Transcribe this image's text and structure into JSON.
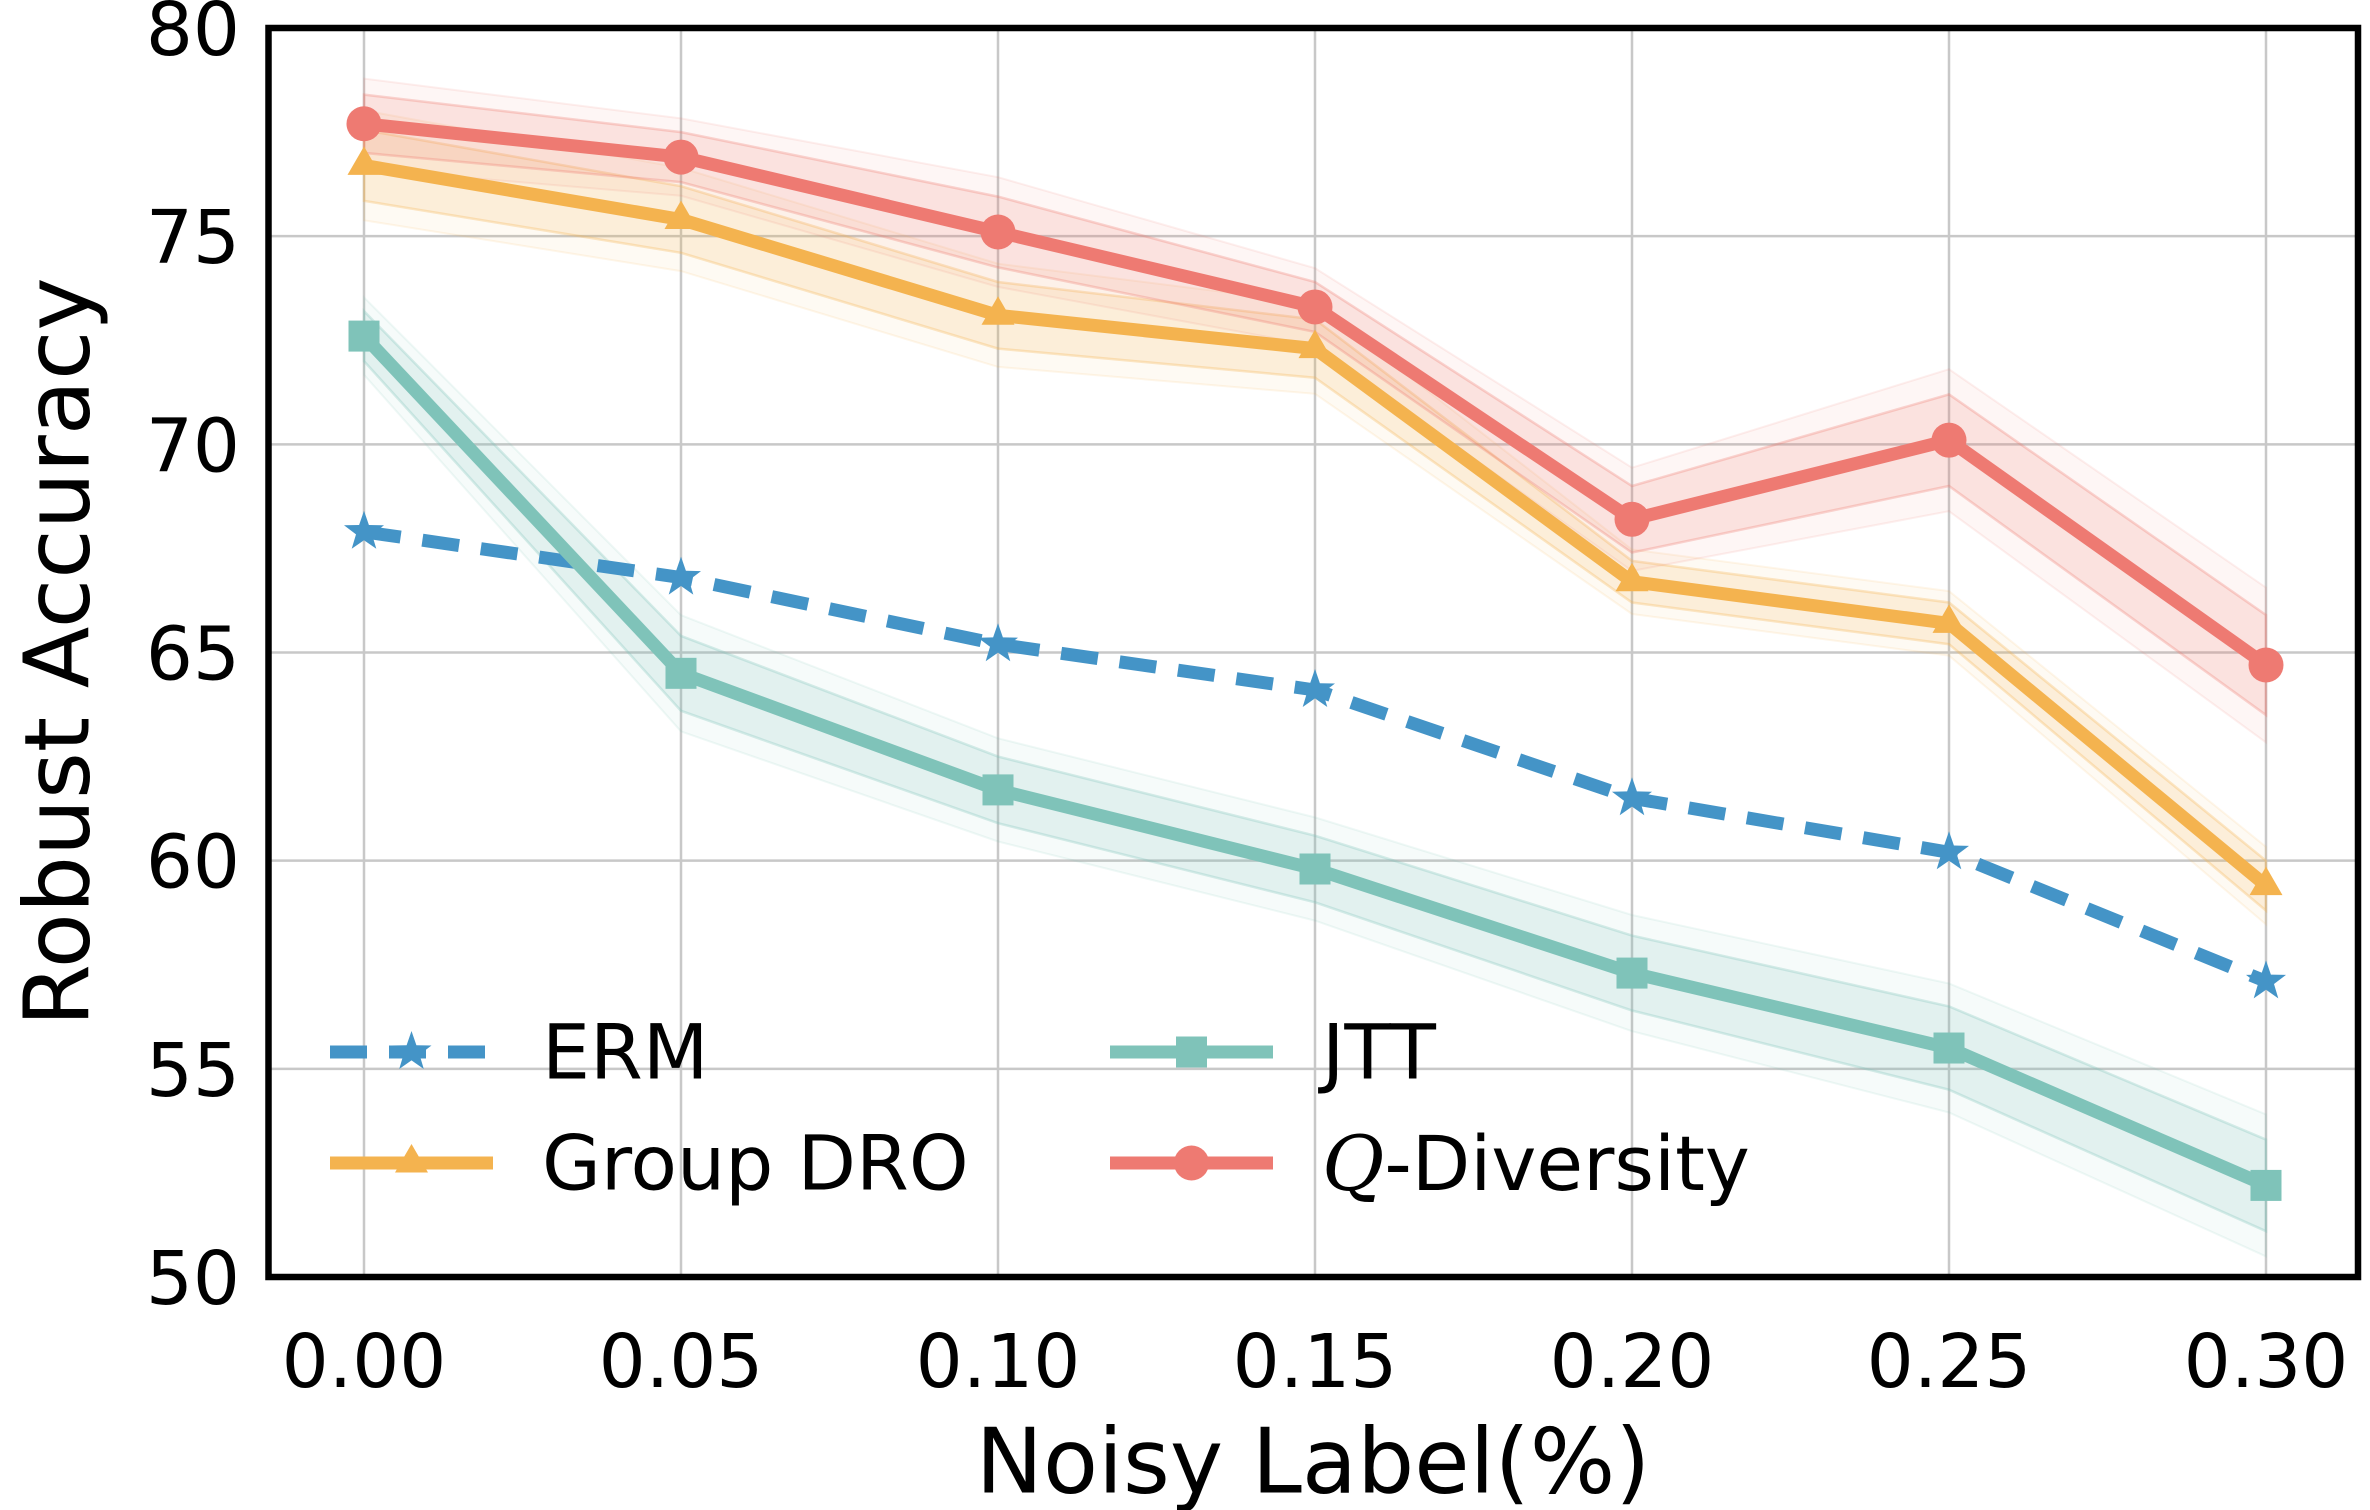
{
  "chart_data": {
    "type": "line",
    "title": "",
    "xlabel": "Noisy Label(%)",
    "ylabel": "Robust Accuracy",
    "x": [
      0.0,
      0.05,
      0.1,
      0.15,
      0.2,
      0.25,
      0.3
    ],
    "x_tick_labels": [
      "0.00",
      "0.05",
      "0.10",
      "0.15",
      "0.20",
      "0.25",
      "0.30"
    ],
    "y_ticks": [
      50,
      55,
      60,
      65,
      70,
      75,
      80
    ],
    "y_tick_labels": [
      "50",
      "55",
      "60",
      "65",
      "70",
      "75",
      "80"
    ],
    "xlim": [
      -0.015,
      0.3145
    ],
    "ylim": [
      50,
      80
    ],
    "grid": true,
    "grid_color": "#c8c8c8",
    "background_color": "#ffffff",
    "legend": {
      "position": "lower left",
      "columns": 2,
      "frame": false,
      "row1": [
        "ERM",
        "JTT"
      ],
      "row2": [
        "Group DRO",
        "Q-Diversity"
      ]
    },
    "series": [
      {
        "name": "ERM",
        "label": "ERM",
        "color": "#4494c7",
        "marker": "star",
        "line_style": "dashed",
        "values": [
          67.9,
          66.8,
          65.2,
          64.1,
          61.5,
          60.2,
          57.1
        ],
        "band_halfwidth": null
      },
      {
        "name": "Group DRO",
        "label": "Group DRO",
        "color": "#f4b34f",
        "marker": "triangle",
        "line_style": "solid",
        "values": [
          76.7,
          75.4,
          73.1,
          72.3,
          66.7,
          65.7,
          59.4
        ],
        "band_halfwidth": [
          0.85,
          0.8,
          0.8,
          0.7,
          0.5,
          0.5,
          0.6
        ]
      },
      {
        "name": "JTT",
        "label": "JTT",
        "color": "#7fc3b9",
        "marker": "square",
        "line_style": "solid",
        "values": [
          72.6,
          64.5,
          61.7,
          59.8,
          57.3,
          55.5,
          52.2
        ],
        "band_halfwidth": [
          0.6,
          0.9,
          0.8,
          0.8,
          0.9,
          1.0,
          1.1
        ]
      },
      {
        "name": "Q-Diversity",
        "label": "Q-Diversity",
        "script_q": true,
        "color": "#ee7a72",
        "marker": "circle",
        "line_style": "solid",
        "values": [
          77.7,
          76.9,
          75.1,
          73.3,
          68.2,
          70.1,
          64.7
        ],
        "band_halfwidth": [
          0.7,
          0.6,
          0.85,
          0.6,
          0.8,
          1.1,
          1.2
        ]
      }
    ]
  }
}
